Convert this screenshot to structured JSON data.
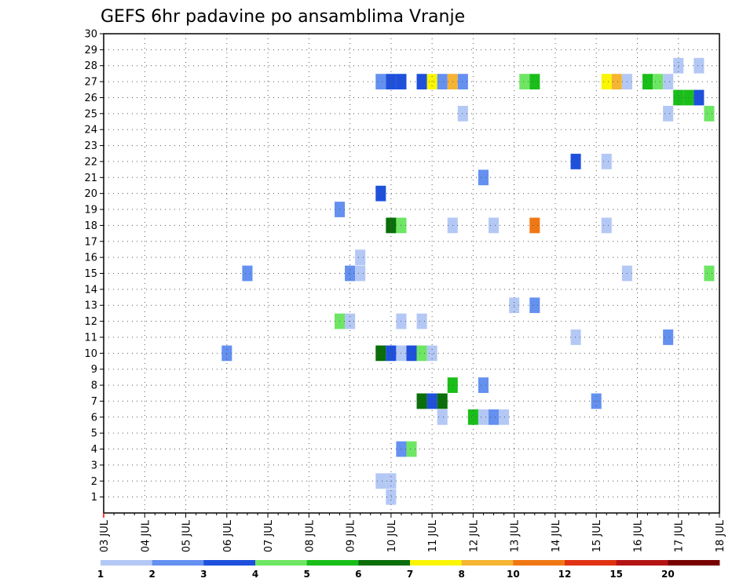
{
  "chart_data": {
    "type": "heatmap",
    "title": "GEFS 6hr padavine po ansamblima Vranje",
    "x_tick_labels": [
      "03 JUL",
      "04 JUL",
      "05 JUL",
      "06 JUL",
      "07 JUL",
      "08 JUL",
      "09 JUL",
      "10 JUL",
      "11 JUL",
      "12 JUL",
      "13 JUL",
      "14 JUL",
      "15 JUL",
      "16 JUL",
      "17 JUL",
      "18 JUL"
    ],
    "y_tick_labels": [
      "1",
      "2",
      "3",
      "4",
      "5",
      "6",
      "7",
      "8",
      "9",
      "10",
      "11",
      "12",
      "13",
      "14",
      "15",
      "16",
      "17",
      "18",
      "19",
      "20",
      "21",
      "22",
      "23",
      "24",
      "25",
      "26",
      "27",
      "28",
      "29",
      "30"
    ],
    "ylim": [
      0,
      30
    ],
    "x_steps_per_day": 4,
    "grid": true,
    "colorbar": {
      "labels": [
        "1",
        "2",
        "3",
        "4",
        "5",
        "6",
        "7",
        "8",
        "10",
        "12",
        "15",
        "20"
      ],
      "colors": [
        "#b4c8f5",
        "#6490f0",
        "#1e50dc",
        "#6ee664",
        "#19be19",
        "#0a6e0a",
        "#faf500",
        "#f5b432",
        "#f07814",
        "#e13214",
        "#b41414",
        "#780000"
      ]
    },
    "cells": [
      {
        "member": 1,
        "step": 28,
        "value": 1
      },
      {
        "member": 2,
        "step": 27,
        "value": 1
      },
      {
        "member": 2,
        "step": 28,
        "value": 1
      },
      {
        "member": 4,
        "step": 29,
        "value": 2
      },
      {
        "member": 4,
        "step": 30,
        "value": 4
      },
      {
        "member": 6,
        "step": 33,
        "value": 1
      },
      {
        "member": 6,
        "step": 36,
        "value": 5
      },
      {
        "member": 6,
        "step": 37,
        "value": 1
      },
      {
        "member": 6,
        "step": 38,
        "value": 2
      },
      {
        "member": 6,
        "step": 39,
        "value": 1
      },
      {
        "member": 7,
        "step": 31,
        "value": 6
      },
      {
        "member": 7,
        "step": 32,
        "value": 3
      },
      {
        "member": 7,
        "step": 33,
        "value": 6
      },
      {
        "member": 7,
        "step": 48,
        "value": 2
      },
      {
        "member": 8,
        "step": 34,
        "value": 5
      },
      {
        "member": 8,
        "step": 37,
        "value": 2
      },
      {
        "member": 10,
        "step": 12,
        "value": 2
      },
      {
        "member": 10,
        "step": 27,
        "value": 6
      },
      {
        "member": 10,
        "step": 28,
        "value": 3
      },
      {
        "member": 10,
        "step": 29,
        "value": 1
      },
      {
        "member": 10,
        "step": 30,
        "value": 3
      },
      {
        "member": 10,
        "step": 31,
        "value": 4
      },
      {
        "member": 10,
        "step": 32,
        "value": 1
      },
      {
        "member": 11,
        "step": 46,
        "value": 1
      },
      {
        "member": 11,
        "step": 55,
        "value": 2
      },
      {
        "member": 12,
        "step": 23,
        "value": 4
      },
      {
        "member": 12,
        "step": 24,
        "value": 1
      },
      {
        "member": 12,
        "step": 29,
        "value": 1
      },
      {
        "member": 12,
        "step": 31,
        "value": 1
      },
      {
        "member": 13,
        "step": 40,
        "value": 1
      },
      {
        "member": 13,
        "step": 42,
        "value": 2
      },
      {
        "member": 15,
        "step": 14,
        "value": 2
      },
      {
        "member": 15,
        "step": 24,
        "value": 2
      },
      {
        "member": 15,
        "step": 25,
        "value": 1
      },
      {
        "member": 15,
        "step": 51,
        "value": 1
      },
      {
        "member": 15,
        "step": 59,
        "value": 4
      },
      {
        "member": 16,
        "step": 25,
        "value": 1
      },
      {
        "member": 18,
        "step": 28,
        "value": 6
      },
      {
        "member": 18,
        "step": 29,
        "value": 4
      },
      {
        "member": 18,
        "step": 34,
        "value": 1
      },
      {
        "member": 18,
        "step": 38,
        "value": 1
      },
      {
        "member": 18,
        "step": 42,
        "value": 9
      },
      {
        "member": 18,
        "step": 49,
        "value": 1
      },
      {
        "member": 19,
        "step": 23,
        "value": 2
      },
      {
        "member": 20,
        "step": 27,
        "value": 3
      },
      {
        "member": 21,
        "step": 37,
        "value": 2
      },
      {
        "member": 22,
        "step": 46,
        "value": 3
      },
      {
        "member": 22,
        "step": 49,
        "value": 1
      },
      {
        "member": 25,
        "step": 35,
        "value": 1
      },
      {
        "member": 25,
        "step": 55,
        "value": 1
      },
      {
        "member": 25,
        "step": 59,
        "value": 4
      },
      {
        "member": 26,
        "step": 56,
        "value": 5
      },
      {
        "member": 26,
        "step": 57,
        "value": 5
      },
      {
        "member": 26,
        "step": 58,
        "value": 3
      },
      {
        "member": 27,
        "step": 27,
        "value": 2
      },
      {
        "member": 27,
        "step": 28,
        "value": 3
      },
      {
        "member": 27,
        "step": 29,
        "value": 3
      },
      {
        "member": 27,
        "step": 31,
        "value": 3
      },
      {
        "member": 27,
        "step": 32,
        "value": 7
      },
      {
        "member": 27,
        "step": 33,
        "value": 2
      },
      {
        "member": 27,
        "step": 34,
        "value": 8
      },
      {
        "member": 27,
        "step": 35,
        "value": 2
      },
      {
        "member": 27,
        "step": 41,
        "value": 4
      },
      {
        "member": 27,
        "step": 42,
        "value": 5
      },
      {
        "member": 27,
        "step": 49,
        "value": 7
      },
      {
        "member": 27,
        "step": 50,
        "value": 8
      },
      {
        "member": 27,
        "step": 51,
        "value": 1
      },
      {
        "member": 27,
        "step": 53,
        "value": 5
      },
      {
        "member": 27,
        "step": 54,
        "value": 4
      },
      {
        "member": 27,
        "step": 55,
        "value": 1
      },
      {
        "member": 28,
        "step": 56,
        "value": 1
      },
      {
        "member": 28,
        "step": 58,
        "value": 1
      }
    ]
  }
}
